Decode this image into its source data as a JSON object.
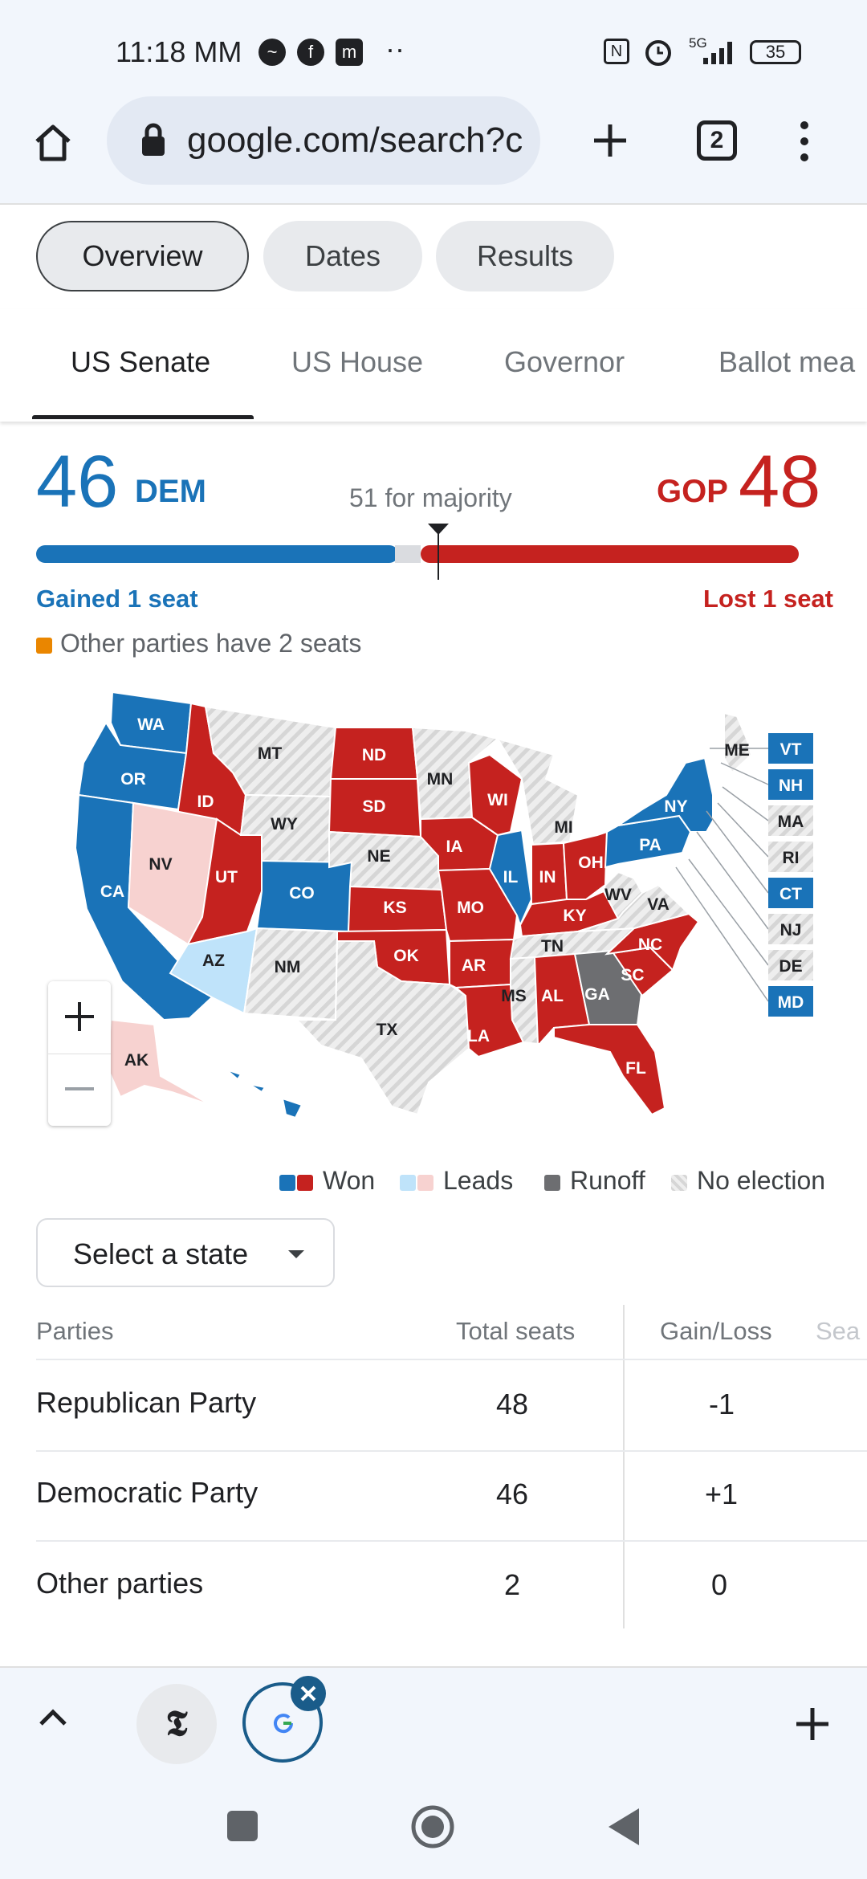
{
  "status_bar": {
    "time": "11:18 MM",
    "battery": "35",
    "network": "5G"
  },
  "browser": {
    "url": "google.com/search?c",
    "tab_count": "2"
  },
  "chips": [
    {
      "label": "Overview",
      "selected": true
    },
    {
      "label": "Dates",
      "selected": false
    },
    {
      "label": "Results",
      "selected": false
    }
  ],
  "race_tabs": [
    {
      "label": "US Senate",
      "selected": true
    },
    {
      "label": "US House",
      "selected": false
    },
    {
      "label": "Governor",
      "selected": false
    },
    {
      "label": "Ballot mea",
      "selected": false
    }
  ],
  "summary": {
    "dem_seats": "46",
    "dem_label": "DEM",
    "gop_seats": "48",
    "gop_label": "GOP",
    "majority_text": "51 for majority",
    "dem_change": "Gained 1 seat",
    "gop_change": "Lost 1 seat",
    "other_text": "Other parties have 2 seats",
    "bar": {
      "dem": 46,
      "other": 2,
      "gop": 48,
      "total": 100,
      "majority": 51
    }
  },
  "colors": {
    "dem": "#1a73b8",
    "gop": "#c5221f",
    "dem_lead": "#bfe3fa",
    "gop_lead": "#f7d2d0",
    "runoff": "#6d6e71",
    "other": "#ea8600",
    "no_election": "#e6e6e6"
  },
  "map_states": [
    {
      "abbr": "WA",
      "status": "dem"
    },
    {
      "abbr": "OR",
      "status": "dem"
    },
    {
      "abbr": "CA",
      "status": "dem"
    },
    {
      "abbr": "ID",
      "status": "gop"
    },
    {
      "abbr": "NV",
      "status": "gop_lead"
    },
    {
      "abbr": "UT",
      "status": "gop"
    },
    {
      "abbr": "AZ",
      "status": "dem_lead"
    },
    {
      "abbr": "MT",
      "status": "none"
    },
    {
      "abbr": "WY",
      "status": "none"
    },
    {
      "abbr": "CO",
      "status": "dem"
    },
    {
      "abbr": "NM",
      "status": "none"
    },
    {
      "abbr": "ND",
      "status": "gop"
    },
    {
      "abbr": "SD",
      "status": "gop"
    },
    {
      "abbr": "NE",
      "status": "none"
    },
    {
      "abbr": "KS",
      "status": "gop"
    },
    {
      "abbr": "OK",
      "status": "gop"
    },
    {
      "abbr": "TX",
      "status": "none"
    },
    {
      "abbr": "MN",
      "status": "none"
    },
    {
      "abbr": "IA",
      "status": "gop"
    },
    {
      "abbr": "MO",
      "status": "gop"
    },
    {
      "abbr": "AR",
      "status": "gop"
    },
    {
      "abbr": "LA",
      "status": "gop"
    },
    {
      "abbr": "WI",
      "status": "gop"
    },
    {
      "abbr": "IL",
      "status": "dem"
    },
    {
      "abbr": "MI",
      "status": "none"
    },
    {
      "abbr": "IN",
      "status": "gop"
    },
    {
      "abbr": "OH",
      "status": "gop"
    },
    {
      "abbr": "KY",
      "status": "gop"
    },
    {
      "abbr": "TN",
      "status": "none"
    },
    {
      "abbr": "MS",
      "status": "none"
    },
    {
      "abbr": "AL",
      "status": "gop"
    },
    {
      "abbr": "GA",
      "status": "runoff"
    },
    {
      "abbr": "FL",
      "status": "gop"
    },
    {
      "abbr": "SC",
      "status": "gop"
    },
    {
      "abbr": "NC",
      "status": "gop"
    },
    {
      "abbr": "WV",
      "status": "none"
    },
    {
      "abbr": "VA",
      "status": "none"
    },
    {
      "abbr": "PA",
      "status": "dem"
    },
    {
      "abbr": "NY",
      "status": "dem"
    },
    {
      "abbr": "ME",
      "status": "none"
    },
    {
      "abbr": "AK",
      "status": "gop_lead"
    },
    {
      "abbr": "HI",
      "status": "dem"
    }
  ],
  "northeast_states": [
    {
      "abbr": "VT",
      "status": "dem"
    },
    {
      "abbr": "NH",
      "status": "dem"
    },
    {
      "abbr": "MA",
      "status": "none"
    },
    {
      "abbr": "RI",
      "status": "none"
    },
    {
      "abbr": "CT",
      "status": "dem"
    },
    {
      "abbr": "NJ",
      "status": "none"
    },
    {
      "abbr": "DE",
      "status": "none"
    },
    {
      "abbr": "MD",
      "status": "dem"
    }
  ],
  "map_legend": {
    "won": "Won",
    "leads": "Leads",
    "runoff": "Runoff",
    "no_election": "No election"
  },
  "select_state": {
    "label": "Select a state"
  },
  "table": {
    "headers": [
      "Parties",
      "Total seats",
      "Gain/Loss",
      "Sea"
    ],
    "rows": [
      {
        "party": "Republican Party",
        "total": "48",
        "change": "-1"
      },
      {
        "party": "Democratic Party",
        "total": "46",
        "change": "+1"
      },
      {
        "party": "Other parties",
        "total": "2",
        "change": "0"
      }
    ]
  }
}
